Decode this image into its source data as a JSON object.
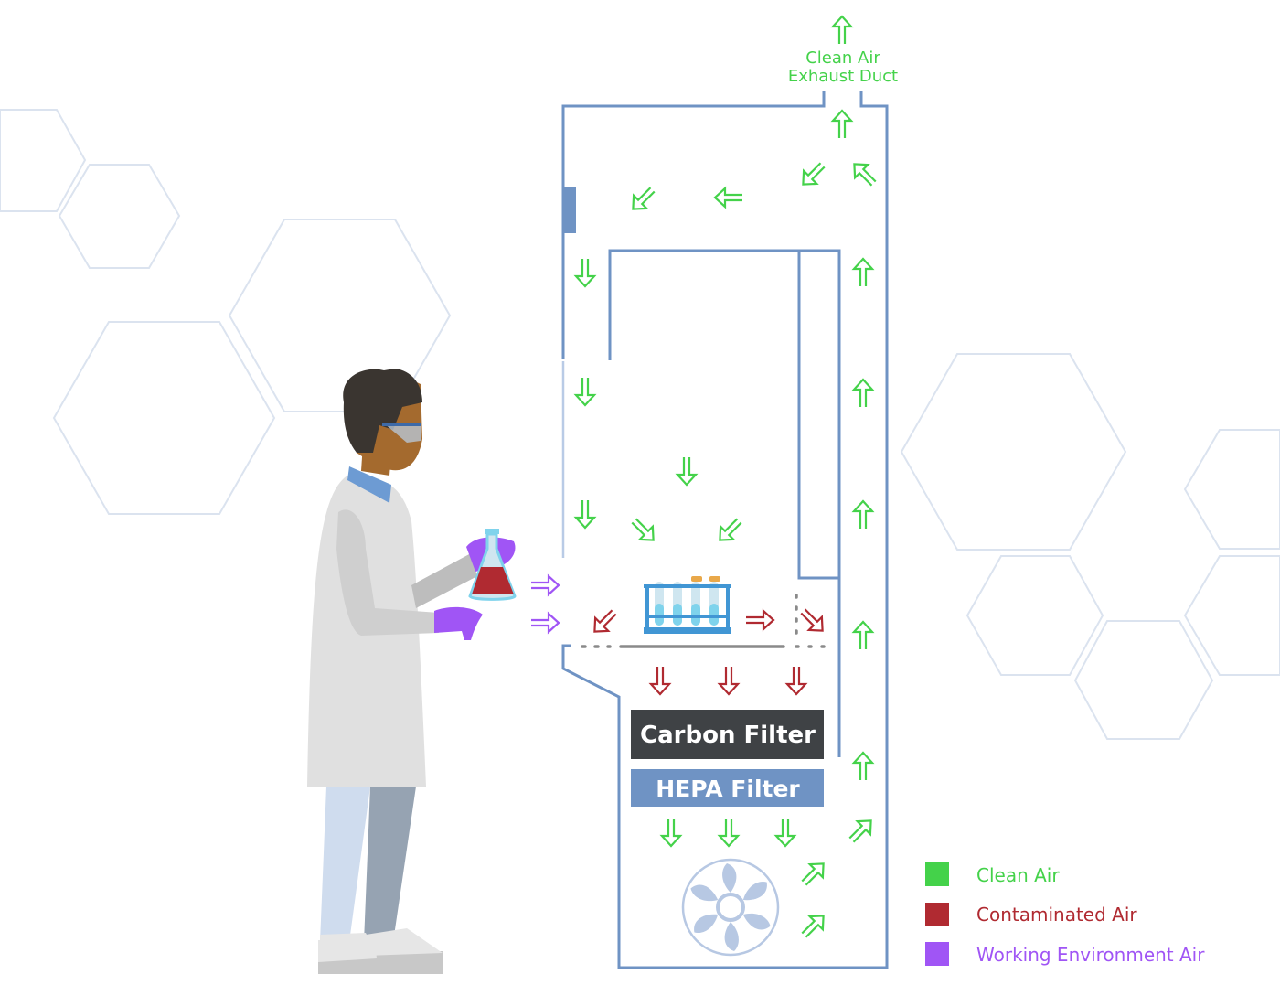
{
  "title": "",
  "exhaust_label": [
    "Clean Air",
    "Exhaust Duct"
  ],
  "filters": {
    "carbon": "Carbon Filter",
    "hepa": "HEPA Filter"
  },
  "legend": [
    {
      "label": "Clean Air",
      "color": "#44d24a"
    },
    {
      "label": "Contaminated Air",
      "color": "#b02a31"
    },
    {
      "label": "Working Environment Air",
      "color": "#a055f5"
    }
  ],
  "colors": {
    "cabinet": "#6f93c4",
    "hexagon": "#dbe3ef",
    "carbon_filter": "#3f4245",
    "hepa_filter": "#6f93c4",
    "fan": "#b7c8e3",
    "test_tube_rack": "#4196d4"
  },
  "icons": [
    "airflow-arrow-icon",
    "fan-icon",
    "test-tube-rack-icon",
    "flask-icon",
    "scientist-figure"
  ]
}
